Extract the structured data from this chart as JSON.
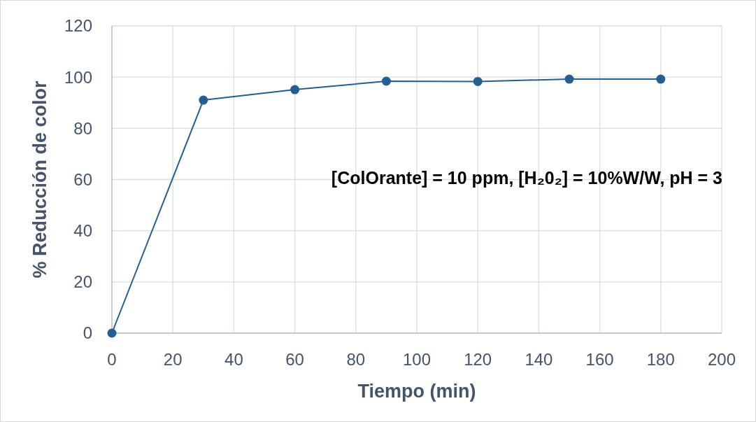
{
  "chart_data": {
    "type": "line",
    "xlabel": "Tiempo (min)",
    "ylabel": "% Reducción de color",
    "x": [
      0,
      30,
      60,
      90,
      120,
      150,
      180
    ],
    "series": [
      {
        "color": "#255e91",
        "values": [
          0,
          91,
          95.1,
          98.4,
          98.3,
          99.2,
          99.2
        ]
      }
    ],
    "xlim": [
      0,
      200
    ],
    "xticks": [
      0,
      20,
      40,
      60,
      80,
      100,
      120,
      140,
      160,
      180,
      200
    ],
    "ylim": [
      0,
      120
    ],
    "yticks": [
      0,
      20,
      40,
      60,
      80,
      100,
      120
    ],
    "grid": true,
    "marker": "circle",
    "line_style": "solid",
    "annotations": [
      "[ColOrante] = 10 ppm, [H₂0₂] = 10%W/W, pH = 3"
    ]
  }
}
